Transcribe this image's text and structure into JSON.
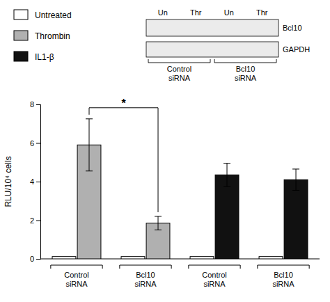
{
  "chart_data": {
    "type": "bar",
    "ylabel": "RLU/10⁴ cells",
    "categories": [
      "Control\nsiRNA",
      "Bcl10\nsiRNA",
      "Control\nsiRNA",
      "Bcl10\nsiRNA"
    ],
    "series": [
      {
        "name": "Untreated",
        "color": "#ffffff",
        "values": [
          0.12,
          0.12,
          0.12,
          0.12
        ],
        "errors": [
          0.0,
          0.0,
          0.0,
          0.0
        ]
      },
      {
        "name": "Thrombin",
        "color": "#b0b0b0",
        "values": [
          5.9,
          1.85,
          null,
          null
        ],
        "errors": [
          1.35,
          0.35,
          null,
          null
        ]
      },
      {
        "name": "IL1-β",
        "color": "#111111",
        "values": [
          null,
          null,
          4.35,
          4.1
        ],
        "errors": [
          null,
          null,
          0.6,
          0.55
        ]
      }
    ],
    "ylim": [
      0,
      8
    ],
    "yticks": [
      0,
      2,
      4,
      6,
      8
    ],
    "grid": false,
    "legend": "upper left",
    "annotations": [
      "*",
      "Un",
      "Thr",
      "Un",
      "Thr",
      "Bcl10",
      "GAPDH",
      "Control\nsiRNA",
      "Bcl10\nsiRNA"
    ]
  }
}
